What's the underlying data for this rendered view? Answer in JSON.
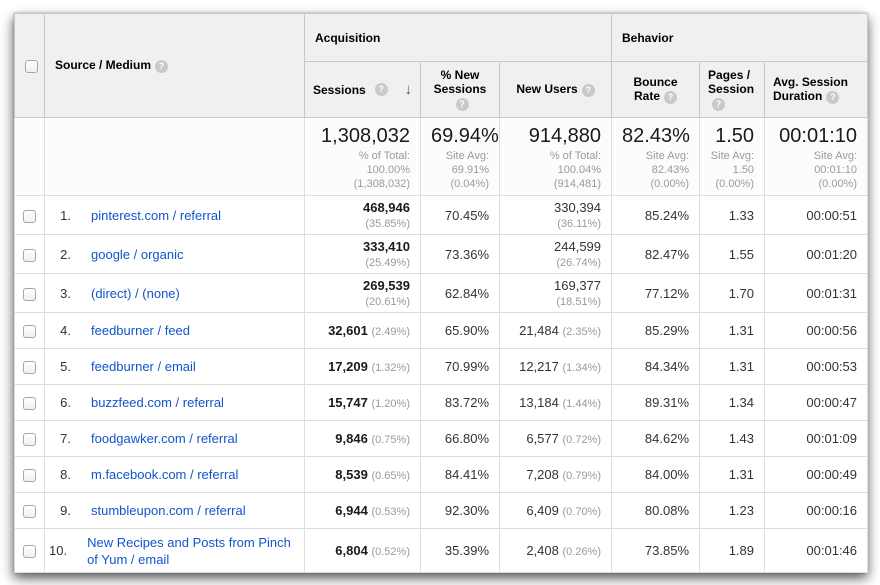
{
  "icons": {
    "help": "?",
    "sort_desc": "↓"
  },
  "group_headers": {
    "acquisition": "Acquisition",
    "behavior": "Behavior"
  },
  "columns": {
    "source_medium": "Source / Medium",
    "sessions": "Sessions",
    "pct_new_sessions": "% New Sessions",
    "new_users": "New Users",
    "bounce_rate": "Bounce Rate",
    "pages_session": "Pages / Session",
    "avg_duration": "Avg. Session Duration"
  },
  "summary": {
    "sessions": {
      "value": "1,308,032",
      "sub": [
        "% of Total:",
        "100.00%",
        "(1,308,032)"
      ]
    },
    "new_sessions": {
      "value": "69.94%",
      "sub": [
        "Site Avg:",
        "69.91%",
        "(0.04%)"
      ]
    },
    "new_users": {
      "value": "914,880",
      "sub": [
        "% of Total:",
        "100.04% (914,481)"
      ]
    },
    "bounce": {
      "value": "82.43%",
      "sub": [
        "Site Avg:",
        "82.43%",
        "(0.00%)"
      ]
    },
    "pages": {
      "value": "1.50",
      "sub": [
        "Site Avg:",
        "1.50",
        "(0.00%)"
      ]
    },
    "duration": {
      "value": "00:01:10",
      "sub": [
        "Site Avg:",
        "00:01:10",
        "(0.00%)"
      ]
    }
  },
  "rows": [
    {
      "rank": "1.",
      "source": "pinterest.com / referral",
      "sessions": "468,946",
      "sessions_pct": "(35.85%)",
      "new_sessions": "70.45%",
      "new_users": "330,394",
      "new_users_pct": "(36.11%)",
      "bounce": "85.24%",
      "pages": "1.33",
      "duration": "00:00:51"
    },
    {
      "rank": "2.",
      "source": "google / organic",
      "sessions": "333,410",
      "sessions_pct": "(25.49%)",
      "new_sessions": "73.36%",
      "new_users": "244,599",
      "new_users_pct": "(26.74%)",
      "bounce": "82.47%",
      "pages": "1.55",
      "duration": "00:01:20"
    },
    {
      "rank": "3.",
      "source": "(direct) / (none)",
      "sessions": "269,539",
      "sessions_pct": "(20.61%)",
      "new_sessions": "62.84%",
      "new_users": "169,377",
      "new_users_pct": "(18.51%)",
      "bounce": "77.12%",
      "pages": "1.70",
      "duration": "00:01:31"
    },
    {
      "rank": "4.",
      "source": "feedburner / feed",
      "sessions": "32,601",
      "sessions_pct": "(2.49%)",
      "new_sessions": "65.90%",
      "new_users": "21,484",
      "new_users_pct": "(2.35%)",
      "bounce": "85.29%",
      "pages": "1.31",
      "duration": "00:00:56"
    },
    {
      "rank": "5.",
      "source": "feedburner / email",
      "sessions": "17,209",
      "sessions_pct": "(1.32%)",
      "new_sessions": "70.99%",
      "new_users": "12,217",
      "new_users_pct": "(1.34%)",
      "bounce": "84.34%",
      "pages": "1.31",
      "duration": "00:00:53"
    },
    {
      "rank": "6.",
      "source": "buzzfeed.com / referral",
      "sessions": "15,747",
      "sessions_pct": "(1.20%)",
      "new_sessions": "83.72%",
      "new_users": "13,184",
      "new_users_pct": "(1.44%)",
      "bounce": "89.31%",
      "pages": "1.34",
      "duration": "00:00:47"
    },
    {
      "rank": "7.",
      "source": "foodgawker.com / referral",
      "sessions": "9,846",
      "sessions_pct": "(0.75%)",
      "new_sessions": "66.80%",
      "new_users": "6,577",
      "new_users_pct": "(0.72%)",
      "bounce": "84.62%",
      "pages": "1.43",
      "duration": "00:01:09"
    },
    {
      "rank": "8.",
      "source": "m.facebook.com / referral",
      "sessions": "8,539",
      "sessions_pct": "(0.65%)",
      "new_sessions": "84.41%",
      "new_users": "7,208",
      "new_users_pct": "(0.79%)",
      "bounce": "84.00%",
      "pages": "1.31",
      "duration": "00:00:49"
    },
    {
      "rank": "9.",
      "source": "stumbleupon.com / referral",
      "sessions": "6,944",
      "sessions_pct": "(0.53%)",
      "new_sessions": "92.30%",
      "new_users": "6,409",
      "new_users_pct": "(0.70%)",
      "bounce": "80.08%",
      "pages": "1.23",
      "duration": "00:00:16"
    },
    {
      "rank": "10.",
      "source": "New Recipes and Posts from Pinch of Yum / email",
      "sessions": "6,804",
      "sessions_pct": "(0.52%)",
      "new_sessions": "35.39%",
      "new_users": "2,408",
      "new_users_pct": "(0.26%)",
      "bounce": "73.85%",
      "pages": "1.89",
      "duration": "00:01:46"
    }
  ],
  "colors": {
    "link": "#1155cc",
    "header_bg": "#f0f0f0",
    "muted": "#9a9a9a"
  }
}
